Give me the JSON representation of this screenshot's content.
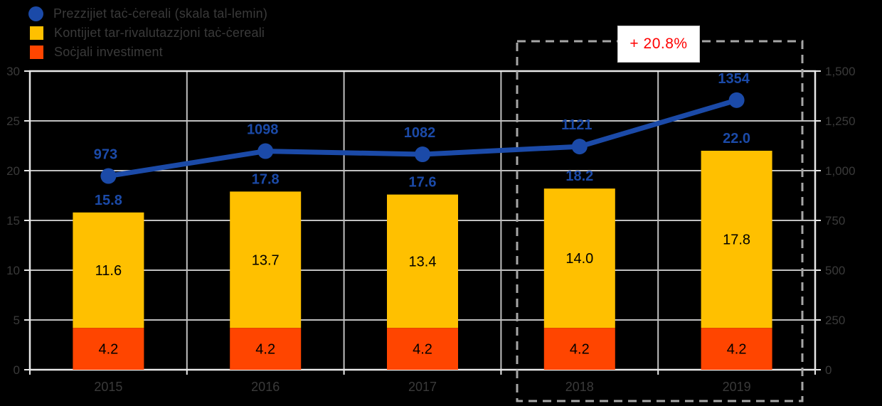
{
  "legend": {
    "items": [
      {
        "label": "Prezzijiet taċ-ċereali (skala tal-lemin)",
        "marker": "circle",
        "color": "#1b4aa8"
      },
      {
        "label": "Kontijiet tar-rivalutazzjoni taċ-ċereali",
        "marker": "square",
        "color": "#ffc000"
      },
      {
        "label": "Soċjali investiment",
        "marker": "square",
        "color": "#ff4500"
      }
    ]
  },
  "annotation": {
    "label": "+ 20.8%",
    "color": "#ff0000",
    "highlighted_years": [
      "2018",
      "2019"
    ]
  },
  "chart_data": {
    "type": "combo-stacked-bar-line",
    "categories": [
      "2015",
      "2016",
      "2017",
      "2018",
      "2019"
    ],
    "series": [
      {
        "name": "Soċjali investiment",
        "type": "bar",
        "stack_order": 0,
        "color": "#ff4500",
        "values": [
          4.2,
          4.2,
          4.2,
          4.2,
          4.2
        ]
      },
      {
        "name": "Kontijiet tar-rivalutazzjoni taċ-ċereali",
        "type": "bar",
        "stack_order": 1,
        "color": "#ffc000",
        "values": [
          11.6,
          13.7,
          13.4,
          14.0,
          17.8
        ]
      },
      {
        "name": "Prezzijiet taċ-ċereali (skala tal-lemin)",
        "type": "line",
        "axis": "right",
        "color": "#1b4aa8",
        "values": [
          973,
          1098,
          1082,
          1121,
          1354
        ]
      }
    ],
    "bar_totals": [
      15.8,
      17.8,
      17.6,
      18.2,
      22.0
    ],
    "left_axis": {
      "min": 0,
      "max": 30,
      "ticks": [
        "0",
        "5",
        "10",
        "15",
        "20",
        "25",
        "30"
      ]
    },
    "right_axis": {
      "min": 0,
      "max": 1500,
      "ticks": [
        "0",
        "250",
        "500",
        "750",
        "1,000",
        "1,250",
        "1,500"
      ]
    },
    "grid": true,
    "legend_position": "top-left",
    "colors": {
      "background": "#000000",
      "plot_background": "#000000",
      "gridline": "#c0c0c0",
      "plot_border": "#e8e8e8",
      "axis_text": "#3a3a3a",
      "data_label_blue": "#1b4aa8",
      "bar_label_black": "#000000",
      "dashed_highlight": "#a6a6a6"
    }
  }
}
